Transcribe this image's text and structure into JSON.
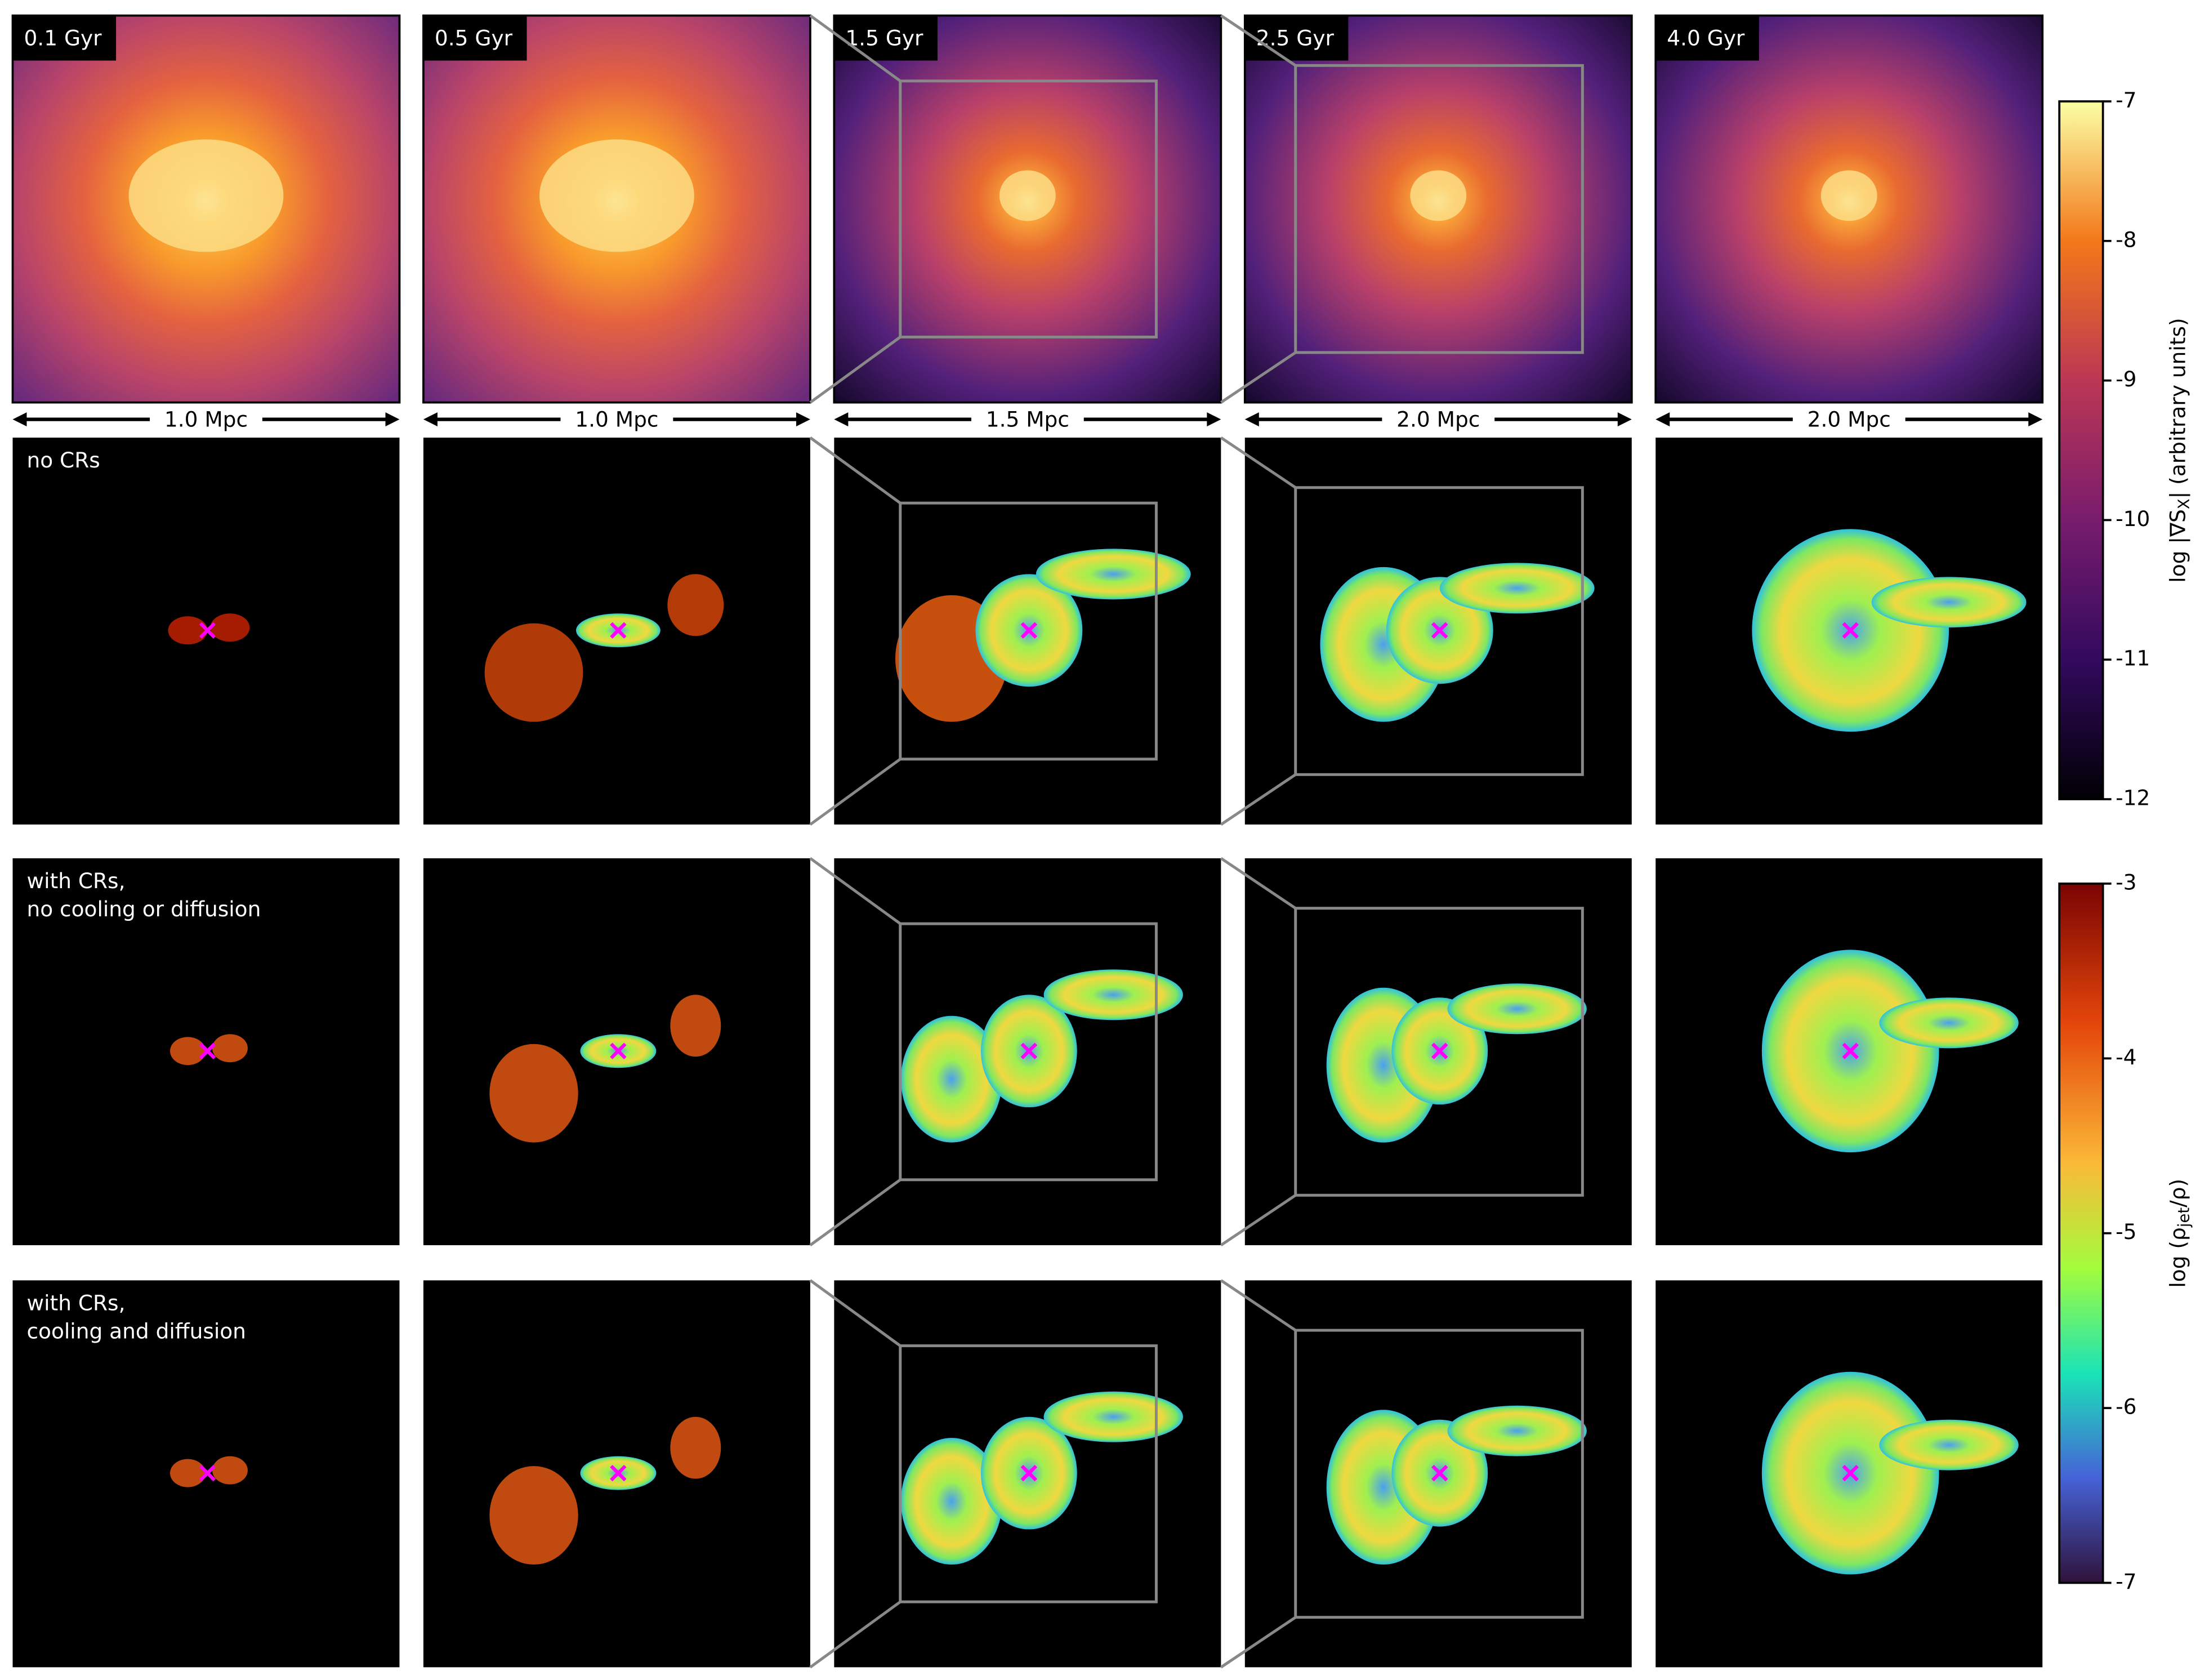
{
  "columns": [
    {
      "time": "0.1 Gyr",
      "scale": "1.0 Mpc"
    },
    {
      "time": "0.5 Gyr",
      "scale": "1.0 Mpc"
    },
    {
      "time": "1.5 Gyr",
      "scale": "1.5 Mpc"
    },
    {
      "time": "2.5 Gyr",
      "scale": "2.0 Mpc"
    },
    {
      "time": "4.0 Gyr",
      "scale": "2.0 Mpc"
    }
  ],
  "rows": [
    {
      "label": [
        "no CRs"
      ]
    },
    {
      "label": [
        "with CRs,",
        "no cooling or diffusion"
      ]
    },
    {
      "label": [
        "with CRs,",
        "cooling and diffusion"
      ]
    }
  ],
  "colorbars": [
    {
      "label": "log |∇S",
      "label_sub": "X",
      "label_end": "| (arbitrary units)",
      "range": [
        -12,
        -7
      ],
      "ticks": [
        -7,
        -8,
        -9,
        -10,
        -11,
        -12
      ]
    },
    {
      "label": "log (ρ",
      "label_sub": "jet",
      "label_end": "/ρ)",
      "range": [
        -7,
        -3
      ],
      "ticks": [
        -3,
        -4,
        -5,
        -6,
        -7
      ]
    }
  ]
}
